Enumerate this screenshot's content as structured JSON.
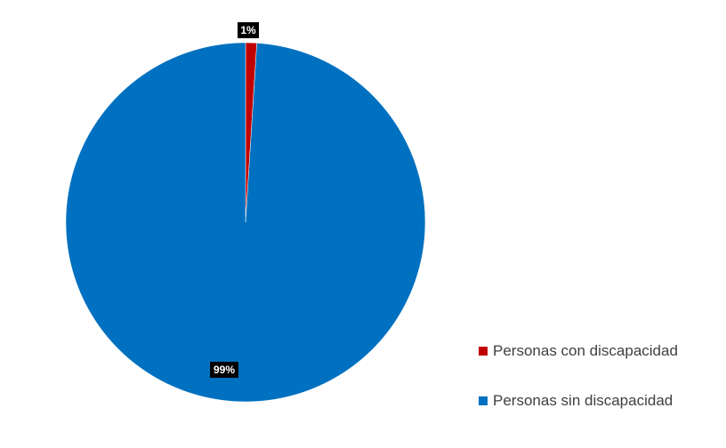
{
  "chart_data": {
    "type": "pie",
    "title": "",
    "categories": [
      "Personas con discapacidad",
      "Personas sin discapacidad"
    ],
    "values": [
      1,
      99
    ],
    "labels": [
      "1%",
      "99%"
    ],
    "colors": [
      "#C00000",
      "#0070C0"
    ],
    "legend_placement": "bottom-right",
    "start_angle_deg": 0,
    "direction": "clockwise"
  }
}
